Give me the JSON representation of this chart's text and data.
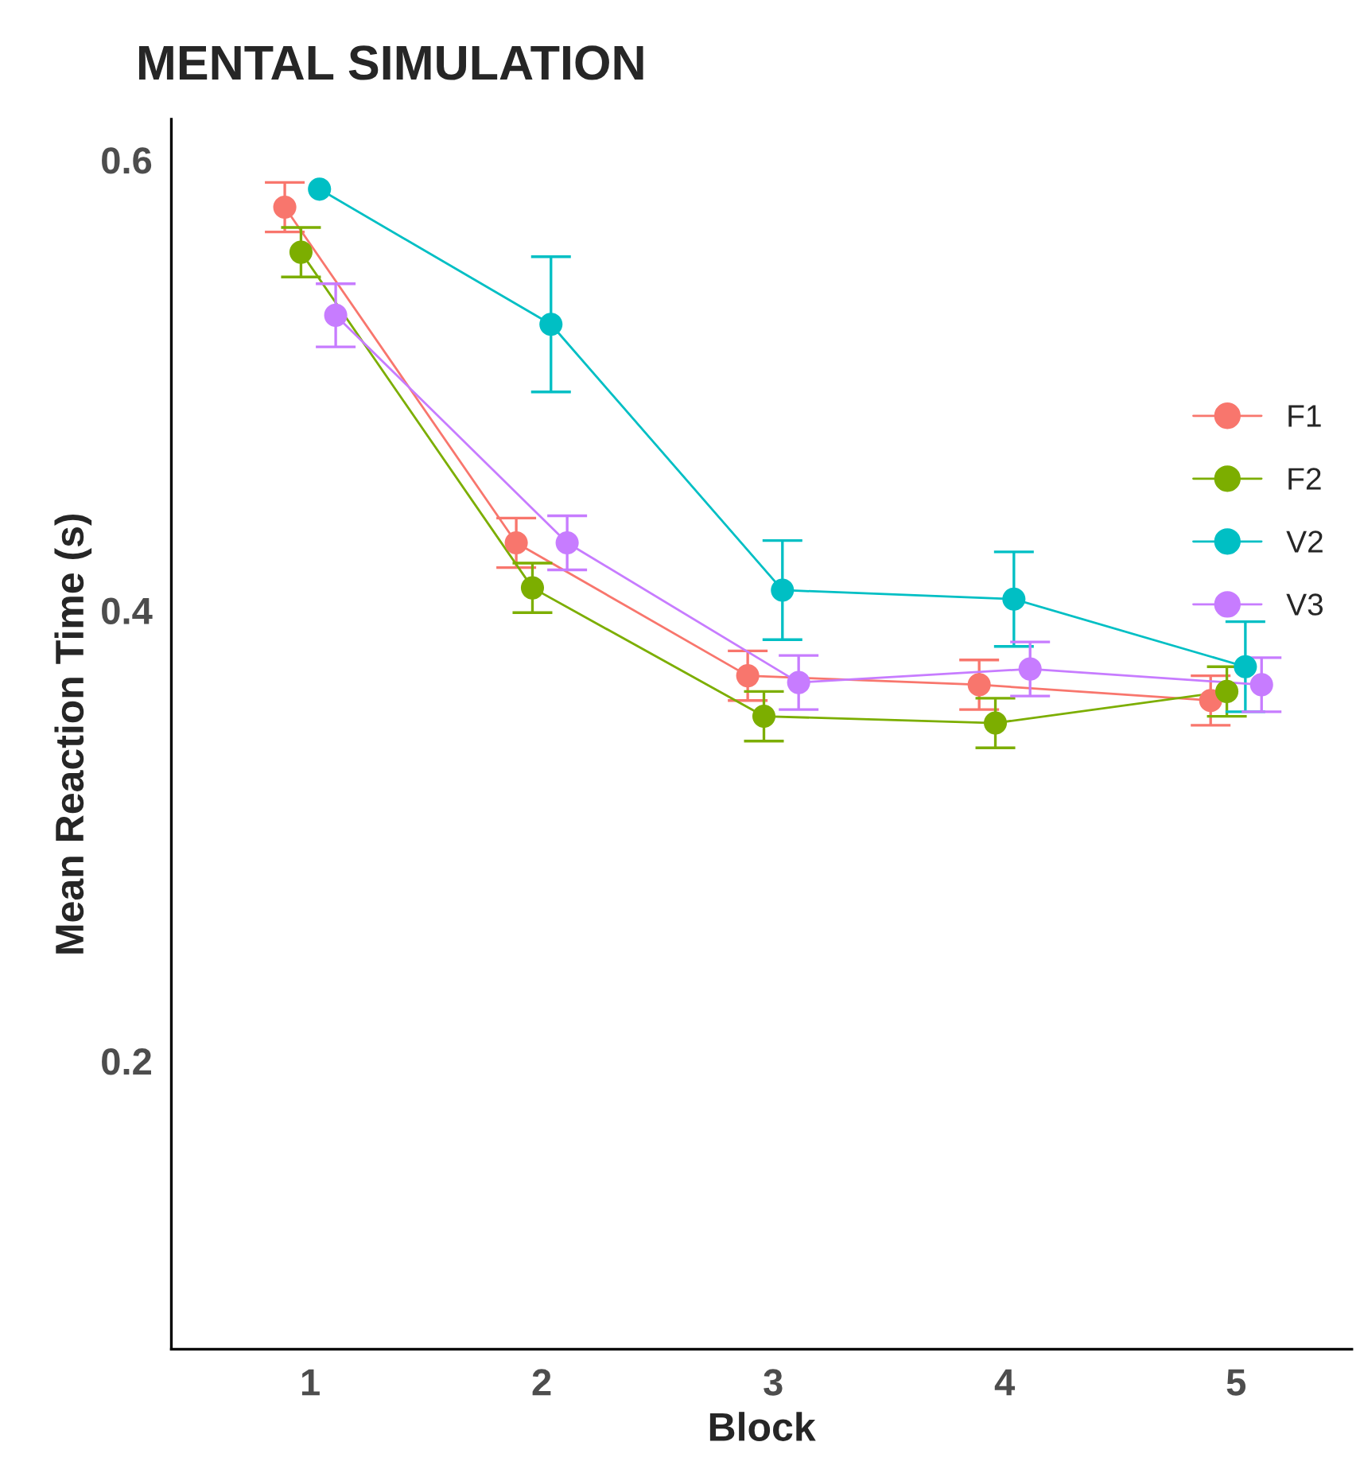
{
  "chart_data": {
    "type": "line",
    "title": "MENTAL SIMULATION",
    "xlabel": "Block",
    "ylabel": "Mean Reaction Time (s)",
    "xlim": [
      0.4,
      5.5
    ],
    "xticks": [
      1,
      2,
      3,
      4,
      5
    ],
    "ylim": [
      0.072,
      0.618
    ],
    "yticks": [
      0.2,
      0.4,
      0.6
    ],
    "grid": false,
    "legend": "right",
    "marker": "circle",
    "line_style": "solid",
    "series": [
      {
        "name": "F1",
        "color": "#f8766d",
        "x": [
          0.89,
          1.89,
          2.89,
          3.89,
          4.89
        ],
        "values": [
          0.579,
          0.43,
          0.371,
          0.367,
          0.36
        ],
        "errors": [
          0.011,
          0.011,
          0.011,
          0.011,
          0.011
        ]
      },
      {
        "name": "F2",
        "color": "#7cae00",
        "x": [
          0.96,
          1.96,
          2.96,
          3.96,
          4.96
        ],
        "values": [
          0.559,
          0.41,
          0.353,
          0.35,
          0.364
        ],
        "errors": [
          0.011,
          0.011,
          0.011,
          0.011,
          0.011
        ]
      },
      {
        "name": "V2",
        "color": "#00bfc4",
        "x": [
          1.04,
          2.04,
          3.04,
          4.04,
          5.04
        ],
        "values": [
          0.587,
          0.527,
          0.409,
          0.405,
          0.375
        ],
        "errors": [
          null,
          0.03,
          0.022,
          0.021,
          0.02
        ]
      },
      {
        "name": "V3",
        "color": "#c77cff",
        "x": [
          1.11,
          2.11,
          3.11,
          4.11,
          5.11
        ],
        "values": [
          0.531,
          0.43,
          0.368,
          0.374,
          0.367
        ],
        "errors": [
          0.014,
          0.012,
          0.012,
          0.012,
          0.012
        ]
      }
    ]
  }
}
